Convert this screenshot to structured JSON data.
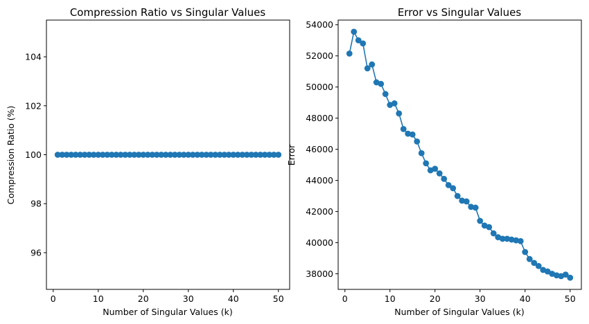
{
  "chart_data": [
    {
      "type": "line",
      "title": "Compression Ratio vs Singular Values",
      "xlabel": "Number of Singular Values (k)",
      "ylabel": "Compression Ratio (%)",
      "xlim": [
        -1.5,
        52.5
      ],
      "ylim": [
        94.5,
        105.5
      ],
      "xticks": [
        0,
        10,
        20,
        30,
        40,
        50
      ],
      "yticks": [
        96,
        98,
        100,
        102,
        104
      ],
      "grid": false,
      "color": "#1f77b4",
      "markers": true,
      "series": [
        {
          "x": [
            1,
            2,
            3,
            4,
            5,
            6,
            7,
            8,
            9,
            10,
            11,
            12,
            13,
            14,
            15,
            16,
            17,
            18,
            19,
            20,
            21,
            22,
            23,
            24,
            25,
            26,
            27,
            28,
            29,
            30,
            31,
            32,
            33,
            34,
            35,
            36,
            37,
            38,
            39,
            40,
            41,
            42,
            43,
            44,
            45,
            46,
            47,
            48,
            49,
            50
          ],
          "y": [
            100,
            100,
            100,
            100,
            100,
            100,
            100,
            100,
            100,
            100,
            100,
            100,
            100,
            100,
            100,
            100,
            100,
            100,
            100,
            100,
            100,
            100,
            100,
            100,
            100,
            100,
            100,
            100,
            100,
            100,
            100,
            100,
            100,
            100,
            100,
            100,
            100,
            100,
            100,
            100,
            100,
            100,
            100,
            100,
            100,
            100,
            100,
            100,
            100,
            100
          ]
        }
      ]
    },
    {
      "type": "line",
      "title": "Error vs Singular Values",
      "xlabel": "Number of Singular Values (k)",
      "ylabel": "Error",
      "xlim": [
        -1.5,
        52.5
      ],
      "ylim": [
        37000,
        54300
      ],
      "xticks": [
        0,
        10,
        20,
        30,
        40,
        50
      ],
      "yticks": [
        38000,
        40000,
        42000,
        44000,
        46000,
        48000,
        50000,
        52000,
        54000
      ],
      "grid": false,
      "color": "#1f77b4",
      "markers": true,
      "series": [
        {
          "x": [
            1,
            2,
            3,
            4,
            5,
            6,
            7,
            8,
            9,
            10,
            11,
            12,
            13,
            14,
            15,
            16,
            17,
            18,
            19,
            20,
            21,
            22,
            23,
            24,
            25,
            26,
            27,
            28,
            29,
            30,
            31,
            32,
            33,
            34,
            35,
            36,
            37,
            38,
            39,
            40,
            41,
            42,
            43,
            44,
            45,
            46,
            47,
            48,
            49,
            50
          ],
          "y": [
            52150,
            53550,
            53000,
            52800,
            51200,
            51450,
            50300,
            50200,
            49550,
            48850,
            48950,
            48300,
            47300,
            47000,
            46950,
            46500,
            45750,
            45100,
            44650,
            44750,
            44450,
            44100,
            43700,
            43500,
            43000,
            42700,
            42650,
            42300,
            42250,
            41400,
            41100,
            41000,
            40600,
            40350,
            40250,
            40250,
            40200,
            40150,
            40100,
            39400,
            38950,
            38700,
            38500,
            38250,
            38150,
            38000,
            37900,
            37850,
            37950,
            37750
          ]
        }
      ]
    }
  ]
}
